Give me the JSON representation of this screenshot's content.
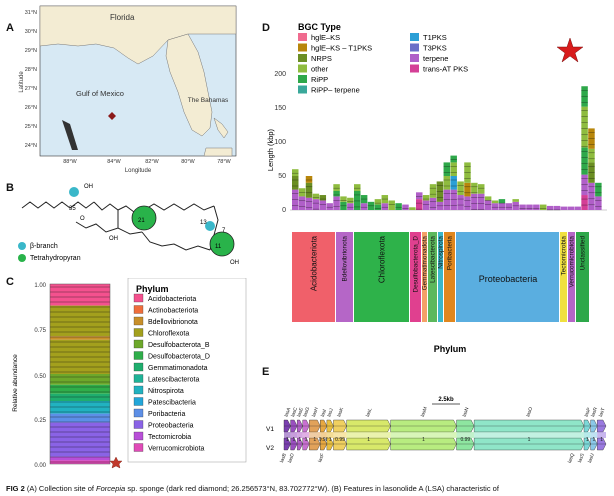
{
  "colors": {
    "hglEKS": "#f06b8f",
    "hglEKS_T1PKS": "#b8860b",
    "NRPS": "#6b8e23",
    "other": "#8fbc3f",
    "RiPP": "#2ea84a",
    "RiPP_terpene": "#3aa89a",
    "T1PKS": "#2b9fd6",
    "T3PKS": "#6a6fc8",
    "terpene": "#b05fc8",
    "transAT_PKS": "#d43f96",
    "land": "#f3ecd3",
    "water": "#d7e9f4",
    "cyan": "#3ab7c9",
    "green": "#29b34a"
  },
  "panelA": {
    "label": "A",
    "lat_ticks": [
      "31°N",
      "30°N",
      "29°N",
      "28°N",
      "27°N",
      "26°N",
      "25°N",
      "24°N"
    ],
    "lon_ticks": [
      "88°W",
      "84°W",
      "82°W",
      "80°W",
      "78°W"
    ],
    "xlabel": "Longitude",
    "ylabel": "Latitude",
    "places": {
      "florida": "Florida",
      "gulf": "Gulf of Mexico",
      "bahamas": "The Bahamas"
    }
  },
  "panelB": {
    "label": "B",
    "legend": [
      {
        "name": "β-branch",
        "color": "#3ab7c9"
      },
      {
        "name": "Tetrahydropyran",
        "color": "#29b34a"
      }
    ],
    "atoms": {
      "oh": "OH",
      "o": "O",
      "oh2": "OH",
      "oh3": "OH",
      "n35": "35",
      "n21": "21",
      "n13": "13",
      "n11": "11",
      "n7": "7"
    }
  },
  "panelC": {
    "label": "C",
    "ylabel": "Relative abundance",
    "yticks": [
      "1.00",
      "0.75",
      "0.50",
      "0.25",
      "0.00"
    ],
    "legend_title": "Phylum",
    "legend": [
      {
        "name": "Acidobacteriota",
        "color": "#f4518e"
      },
      {
        "name": "Actinobacteriota",
        "color": "#ef6e3c"
      },
      {
        "name": "Bdellovibrionota",
        "color": "#c88f2a"
      },
      {
        "name": "Chloroflexota",
        "color": "#a3a01d"
      },
      {
        "name": "Desulfobacterota_B",
        "color": "#6da82b"
      },
      {
        "name": "Desulfobacterota_D",
        "color": "#2fae4a"
      },
      {
        "name": "Gemmatimonadota",
        "color": "#1fae6e"
      },
      {
        "name": "Latescibacterota",
        "color": "#1fb397"
      },
      {
        "name": "Nitrospirota",
        "color": "#21b2c0"
      },
      {
        "name": "Patescibacteria",
        "color": "#22a6d9"
      },
      {
        "name": "Poribacteria",
        "color": "#5d8fe6"
      },
      {
        "name": "Proteobacteria",
        "color": "#8a63e6"
      },
      {
        "name": "Tectomicrobia",
        "color": "#b84fd8"
      },
      {
        "name": "Verrucomicrobiota",
        "color": "#e04bb8"
      }
    ]
  },
  "panelD": {
    "label": "D",
    "legend_title": "BGC Type",
    "legend": [
      {
        "name": "hglE–KS",
        "key": "hglEKS"
      },
      {
        "name": "hglE–KS – T1PKS",
        "key": "hglEKS_T1PKS"
      },
      {
        "name": "NRPS",
        "key": "NRPS"
      },
      {
        "name": "other",
        "key": "other"
      },
      {
        "name": "RiPP",
        "key": "RiPP"
      },
      {
        "name": "RiPP– terpene",
        "key": "RiPP_terpene"
      },
      {
        "name": "T1PKS",
        "key": "T1PKS"
      },
      {
        "name": "T3PKS",
        "key": "T3PKS"
      },
      {
        "name": "terpene",
        "key": "terpene"
      },
      {
        "name": "trans-AT PKS",
        "key": "transAT_PKS"
      }
    ],
    "ylabel": "Length (kbp)",
    "yticks": [
      "200",
      "150",
      "100",
      "50",
      "0"
    ],
    "xlabel": "Phylum",
    "phyla": [
      {
        "name": "Acidobacteriota",
        "color": "#f0606a"
      },
      {
        "name": "Bdellovibrionota",
        "color": "#b566c7"
      },
      {
        "name": "Chloroflexota",
        "color": "#2eb24a"
      },
      {
        "name": "Desulfobacterota_D",
        "color": "#e0408f"
      },
      {
        "name": "Gemmatimonadota",
        "color": "#f4a066"
      },
      {
        "name": "Latescibacterota",
        "color": "#5cb85c"
      },
      {
        "name": "Nitrospirota",
        "color": "#3ab7c9"
      },
      {
        "name": "Poribacteria",
        "color": "#e0871f"
      },
      {
        "name": "Proteobacteria",
        "color": "#5aaee0"
      },
      {
        "name": "Tectomicrobia",
        "color": "#f0e040"
      },
      {
        "name": "Verrucomicrobiota",
        "color": "#b566c7"
      },
      {
        "name": "Unclassified",
        "color": "#2ea84a"
      }
    ]
  },
  "panelE": {
    "label": "E",
    "scale": "2.5kb",
    "v1": "V1",
    "v2": "V2",
    "genes_top": [
      "lasA",
      "lasC",
      "lasE",
      "lasG",
      "lasH",
      "lasI",
      "lasJ",
      "lasK",
      "lasL",
      "lasM",
      "lasN",
      "lasO",
      "lasP",
      "lasR",
      "lasT"
    ],
    "genes_bot": [
      "lasB",
      "lasD",
      "lasF",
      "lasQ",
      "lasS",
      "lasU"
    ],
    "scores": [
      "1",
      "1",
      "1",
      "1",
      "1",
      "0.98",
      "1",
      "0.99",
      "1",
      "1",
      "0.99",
      "1",
      "1",
      "1",
      "1"
    ]
  },
  "caption": {
    "fig": "FIG 2",
    "text": " (A) Collection site of ",
    "species": "Forcepia",
    "text2": " sp. sponge (dark red diamond; 26.256573°N, 83.702772°W). (B) Features in lasonolide A (LSA) characteristic of"
  }
}
